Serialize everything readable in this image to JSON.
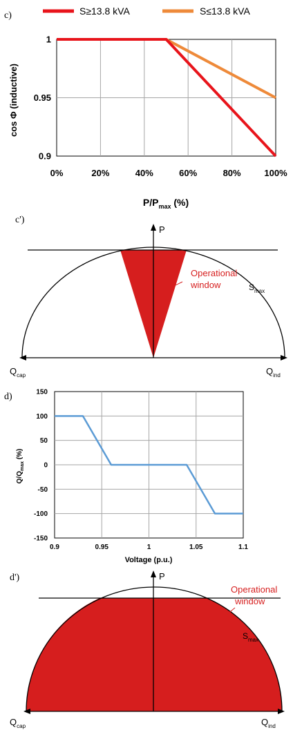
{
  "colors": {
    "red": "#e8141b",
    "orange": "#ee8a3a",
    "blue": "#5b9bd5",
    "operational_red": "#d61e1e",
    "grid": "#a6a6a6",
    "axis": "#000000"
  },
  "panel_c": {
    "label": "c)",
    "legend": [
      {
        "name": "S≥13.8 kVA"
      },
      {
        "name": "S≤13.8 kVA"
      }
    ],
    "ylabel": "cos Φ (inductive)",
    "xlabel_main": "P/P",
    "xlabel_sub": "max",
    "xlabel_unit": " (%)"
  },
  "panel_c_prime": {
    "label": "c')",
    "p_label": "P",
    "operational_line1": "Operational",
    "operational_line2": "window",
    "smax_main": "S",
    "smax_sub": "max",
    "qcap_main": "Q",
    "qcap_sub": "cap",
    "qind_main": "Q",
    "qind_sub": "ind"
  },
  "panel_d": {
    "label": "d)",
    "ylabel_main": "Q/Q",
    "ylabel_sub": "max",
    "ylabel_unit": " (%)",
    "xlabel": "Voltage (p.u.)"
  },
  "panel_d_prime": {
    "label": "d')",
    "p_label": "P",
    "operational_line1": "Operational",
    "operational_line2": "window",
    "smax_main": "S",
    "smax_sub": "max",
    "qcap_main": "Q",
    "qcap_sub": "cap",
    "qind_main": "Q",
    "qind_sub": "ind"
  },
  "chart_data": [
    {
      "type": "line",
      "title": "",
      "xlabel": "P/Pmax (%)",
      "ylabel": "cos Φ (inductive)",
      "xlim": [
        0,
        100
      ],
      "ylim": [
        0.9,
        1
      ],
      "x_ticks": [
        "0%",
        "20%",
        "40%",
        "60%",
        "80%",
        "100%"
      ],
      "x_tick_values": [
        0,
        20,
        40,
        60,
        80,
        100
      ],
      "y_ticks": [
        "1",
        "0.95",
        "0.9"
      ],
      "y_tick_values": [
        1,
        0.95,
        0.9
      ],
      "grid": true,
      "legend_position": "top",
      "series": [
        {
          "name": "S≥13.8 kVA",
          "color": "#e8141b",
          "x": [
            0,
            50,
            100
          ],
          "y": [
            1,
            1,
            0.9
          ]
        },
        {
          "name": "S≤13.8 kVA",
          "color": "#ee8a3a",
          "x": [
            0,
            50,
            100
          ],
          "y": [
            1,
            1,
            0.95
          ]
        }
      ]
    },
    {
      "type": "line",
      "title": "",
      "xlabel": "Voltage (p.u.)",
      "ylabel": "Q/Qmax (%)",
      "xlim": [
        0.9,
        1.1
      ],
      "ylim": [
        -150,
        150
      ],
      "x_ticks": [
        "0.9",
        "0.95",
        "1",
        "1.05",
        "1.1"
      ],
      "x_tick_values": [
        0.9,
        0.95,
        1,
        1.05,
        1.1
      ],
      "y_ticks": [
        "150",
        "100",
        "50",
        "0",
        "-50",
        "-100",
        "-150"
      ],
      "y_tick_values": [
        150,
        100,
        50,
        0,
        -50,
        -100,
        -150
      ],
      "grid": true,
      "series": [
        {
          "color": "#5b9bd5",
          "x": [
            0.9,
            0.93,
            0.96,
            1.04,
            1.07,
            1.1
          ],
          "y": [
            100,
            100,
            0,
            0,
            -100,
            -100
          ]
        }
      ]
    }
  ]
}
